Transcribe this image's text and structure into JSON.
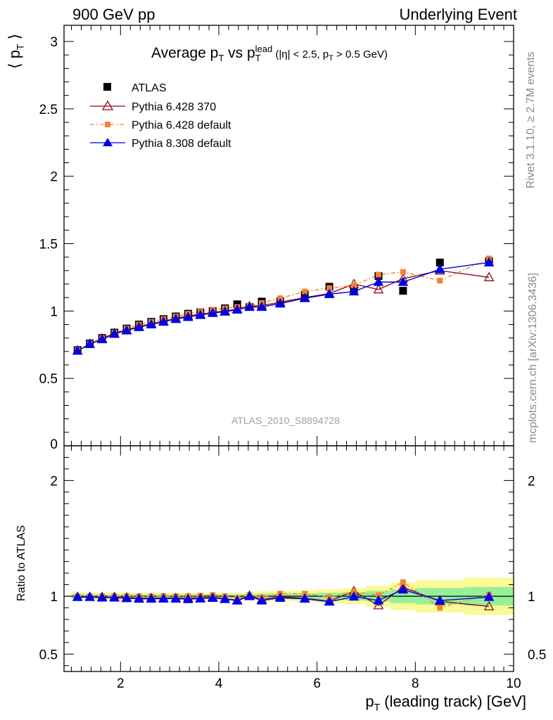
{
  "header": {
    "left": "900 GeV pp",
    "right": "Underlying Event"
  },
  "side_labels": {
    "rivet": "Rivet 3.1.10, ≥ 2.7M events",
    "mcplots": "mcplots.cern.ch [arXiv:1306.3436]"
  },
  "watermark": "ATLAS_2010_S8894728",
  "title": {
    "main": "Average p",
    "main_sub": "T",
    "vs": " vs p",
    "vs_sub": "T",
    "vs_sup": "lead",
    "cuts_a": " (|η| < 2.5, p",
    "cuts_sub": "T",
    "cuts_b": " > 0.5 GeV)"
  },
  "axes": {
    "ylabel_top": "⟨ p",
    "ylabel_top_sub": "T",
    "ylabel_top_end": " ⟩",
    "ylabel_ratio": "Ratio to ATLAS",
    "xlabel": "p",
    "xlabel_sub": "T",
    "xlabel_rest": " (leading track) [GeV]"
  },
  "colors": {
    "atlas": "#000000",
    "pythia6_370": "#8b0a1e",
    "pythia6_default": "#f58231",
    "pythia8": "#0000e6",
    "band_inner": "#96f096",
    "band_outer": "#fafa96"
  },
  "chart_data": {
    "type": "scatter",
    "xlim": [
      0.85,
      10.0
    ],
    "ylim_main": [
      0,
      3.12
    ],
    "ylim_ratio": [
      0.35,
      2.3
    ],
    "xticks": [
      2,
      4,
      6,
      8,
      10
    ],
    "yticks_main": [
      0.5,
      1,
      1.5,
      2,
      2.5,
      3
    ],
    "yticks_main_labels": [
      "0.5",
      "1",
      "1.5",
      "2",
      "2.5",
      "3"
    ],
    "yticks_main_zero": "0",
    "yticks_ratio": [
      0.5,
      1,
      2
    ],
    "yticks_ratio_labels": [
      "0.5",
      "1",
      "2"
    ],
    "x": [
      1.125,
      1.375,
      1.625,
      1.875,
      2.125,
      2.375,
      2.625,
      2.875,
      3.125,
      3.375,
      3.625,
      3.875,
      4.125,
      4.375,
      4.625,
      4.875,
      5.25,
      5.75,
      6.25,
      6.75,
      7.25,
      7.75,
      8.5,
      9.5
    ],
    "band_edges": [
      1.0,
      1.25,
      1.5,
      1.75,
      2.0,
      2.25,
      2.5,
      2.75,
      3.0,
      3.25,
      3.5,
      3.75,
      4.0,
      4.25,
      4.5,
      4.75,
      5.0,
      5.5,
      6.0,
      6.5,
      7.0,
      7.5,
      8.0,
      9.0,
      10.0
    ],
    "band_inner": [
      0.02,
      0.015,
      0.015,
      0.015,
      0.015,
      0.015,
      0.015,
      0.015,
      0.015,
      0.015,
      0.015,
      0.015,
      0.015,
      0.015,
      0.018,
      0.02,
      0.022,
      0.025,
      0.03,
      0.035,
      0.045,
      0.06,
      0.07,
      0.08
    ],
    "band_outer": [
      0.04,
      0.03,
      0.03,
      0.03,
      0.03,
      0.03,
      0.03,
      0.03,
      0.03,
      0.03,
      0.03,
      0.03,
      0.03,
      0.03,
      0.035,
      0.04,
      0.045,
      0.05,
      0.06,
      0.07,
      0.09,
      0.12,
      0.14,
      0.16
    ],
    "series": [
      {
        "name": "ATLAS",
        "marker": "square",
        "values": [
          0.71,
          0.76,
          0.8,
          0.84,
          0.87,
          0.9,
          0.92,
          0.94,
          0.96,
          0.98,
          0.99,
          1.0,
          1.02,
          1.05,
          1.03,
          1.07,
          1.07,
          1.12,
          1.18,
          1.15,
          1.26,
          1.15,
          1.36,
          1.37
        ]
      },
      {
        "name": "Pythia 6.428 370",
        "marker": "triangle-open",
        "values": [
          0.705,
          0.755,
          0.795,
          0.835,
          0.86,
          0.885,
          0.905,
          0.925,
          0.945,
          0.965,
          0.975,
          0.99,
          1.0,
          1.015,
          1.035,
          1.04,
          1.065,
          1.1,
          1.13,
          1.2,
          1.16,
          1.24,
          1.3,
          1.25
        ]
      },
      {
        "name": "Pythia 6.428 default",
        "marker": "square-small",
        "values": [
          0.71,
          0.76,
          0.8,
          0.84,
          0.87,
          0.9,
          0.92,
          0.94,
          0.96,
          0.98,
          0.995,
          1.01,
          1.02,
          1.03,
          1.04,
          1.06,
          1.095,
          1.145,
          1.17,
          1.19,
          1.27,
          1.29,
          1.225,
          1.39
        ]
      },
      {
        "name": "Pythia 8.308 default",
        "marker": "triangle",
        "values": [
          0.705,
          0.755,
          0.79,
          0.83,
          0.855,
          0.88,
          0.9,
          0.92,
          0.94,
          0.955,
          0.97,
          0.985,
          0.995,
          1.01,
          1.03,
          1.03,
          1.055,
          1.095,
          1.125,
          1.145,
          1.215,
          1.215,
          1.31,
          1.36
        ]
      }
    ],
    "ratio": [
      {
        "name": "Pythia 6.428 370",
        "values": [
          0.993,
          0.993,
          0.994,
          0.994,
          0.989,
          0.983,
          0.984,
          0.984,
          0.984,
          0.985,
          0.985,
          0.99,
          0.98,
          0.967,
          1.005,
          0.972,
          0.995,
          0.982,
          0.958,
          1.043,
          0.921,
          1.078,
          0.956,
          0.912
        ]
      },
      {
        "name": "Pythia 6.428 default",
        "values": [
          1.0,
          1.0,
          1.0,
          1.0,
          1.0,
          1.0,
          1.0,
          1.0,
          1.0,
          1.0,
          1.005,
          1.01,
          1.0,
          0.981,
          1.01,
          0.991,
          1.023,
          1.022,
          0.992,
          1.035,
          1.008,
          1.122,
          0.901,
          1.015
        ]
      },
      {
        "name": "Pythia 8.308 default",
        "values": [
          0.993,
          0.993,
          0.988,
          0.988,
          0.983,
          0.978,
          0.978,
          0.979,
          0.979,
          0.974,
          0.98,
          0.985,
          0.975,
          0.962,
          1.0,
          0.963,
          0.986,
          0.978,
          0.953,
          0.996,
          0.964,
          1.057,
          0.963,
          0.993
        ]
      }
    ]
  }
}
